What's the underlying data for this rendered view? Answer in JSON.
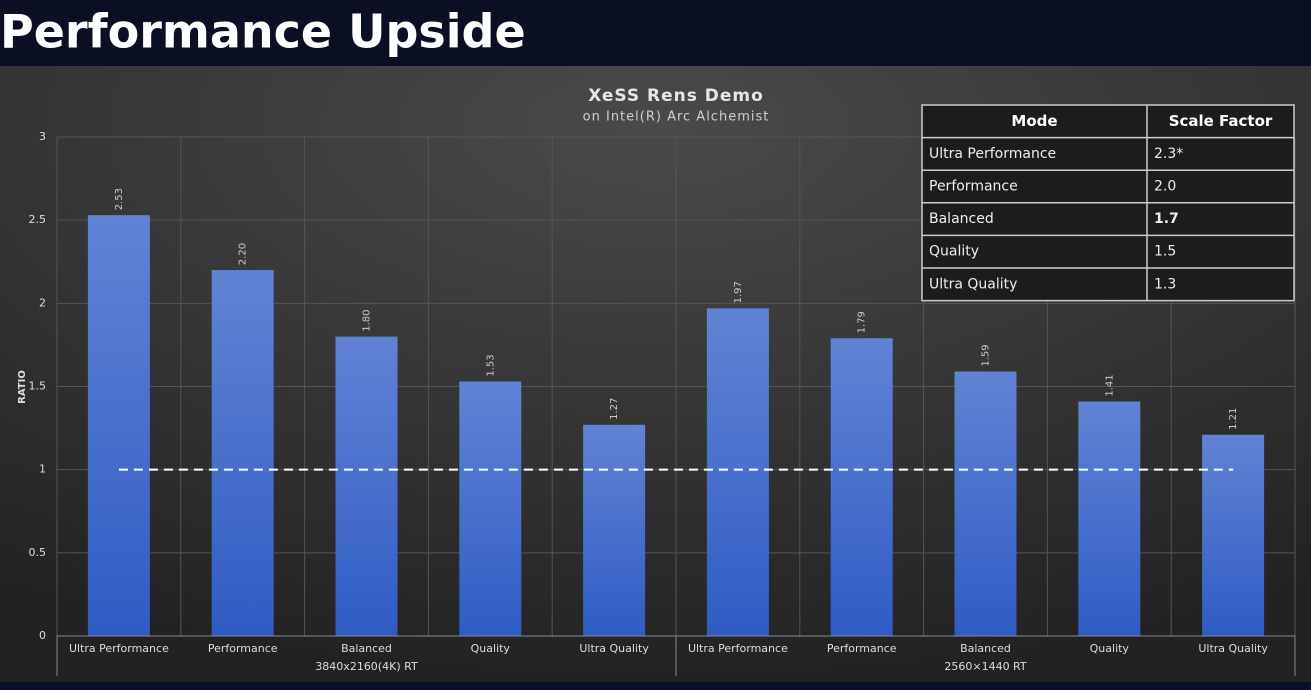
{
  "page_title": "Performance Upside",
  "chart_data": {
    "type": "bar",
    "title": "XeSS Rens Demo",
    "subtitle": "on Intel(R) Arc Alchemist",
    "y_label": "RATIO",
    "categories": [
      "Ultra Performance",
      "Performance",
      "Balanced",
      "Quality",
      "Ultra Quality",
      "Ultra Performance",
      "Performance",
      "Balanced",
      "Quality",
      "Ultra Quality"
    ],
    "groups": [
      {
        "label": "3840x2160(4K) RT",
        "size": 5
      },
      {
        "label": "2560×1440 RT",
        "size": 5
      }
    ],
    "values": [
      2.53,
      2.2,
      1.8,
      1.53,
      1.27,
      1.97,
      1.79,
      1.59,
      1.41,
      1.21
    ],
    "value_labels": [
      "2.53",
      "2.20",
      "1.80",
      "1.53",
      "1.27",
      "1.97",
      "1.79",
      "1.59",
      "1.41",
      "1.21"
    ],
    "color": "#4a72cf",
    "ylim": [
      0,
      3
    ],
    "yticks": [
      0,
      0.5,
      1,
      1.5,
      2,
      2.5,
      3
    ],
    "grid": true,
    "reference_line": 1
  },
  "table": {
    "header": [
      "Mode",
      "Scale Factor"
    ],
    "rows": [
      [
        "Ultra Performance",
        "2.3*"
      ],
      [
        "Performance",
        "2.0"
      ],
      [
        "Balanced",
        "1.7"
      ],
      [
        "Quality",
        "1.5"
      ],
      [
        "Ultra Quality",
        "1.3"
      ]
    ]
  }
}
